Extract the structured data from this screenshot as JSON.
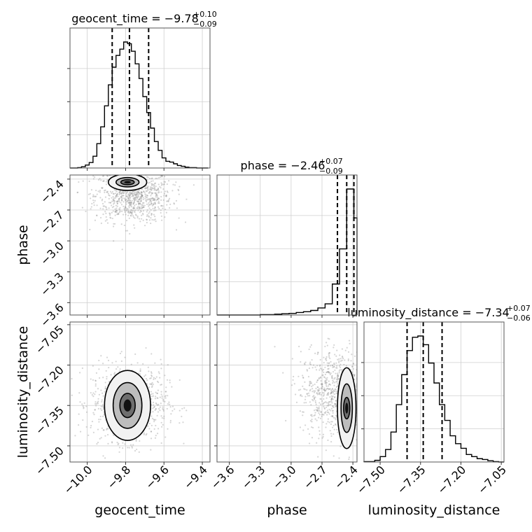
{
  "chart_data": {
    "type": "corner",
    "parameters": [
      {
        "name": "geocent_time",
        "median": -9.78,
        "plus": 0.1,
        "minus": 0.09,
        "range": [
          -10.09,
          -9.36
        ],
        "ticks": [
          -10.0,
          -9.8,
          -9.6,
          -9.4
        ],
        "tick_labels": [
          "−10.0",
          "−9.8",
          "−9.6",
          "−9.4"
        ],
        "quantiles": [
          -9.87,
          -9.78,
          -9.68
        ],
        "title_main": "geocent_time = −9.78",
        "title_sup": "+0.10",
        "title_sub": "−0.09",
        "hist": {
          "edges": [
            -10.09,
            -10.07,
            -10.05,
            -10.03,
            -10.01,
            -9.99,
            -9.97,
            -9.95,
            -9.93,
            -9.91,
            -9.89,
            -9.87,
            -9.85,
            -9.83,
            -9.81,
            -9.79,
            -9.77,
            -9.75,
            -9.73,
            -9.71,
            -9.69,
            -9.67,
            -9.65,
            -9.63,
            -9.61,
            -9.59,
            -9.57,
            -9.55,
            -9.53,
            -9.51,
            -9.49,
            -9.47,
            -9.45,
            -9.43,
            -9.41,
            -9.39,
            -9.37
          ],
          "counts": [
            0,
            0,
            1,
            3,
            7,
            13,
            28,
            58,
            98,
            148,
            198,
            240,
            268,
            283,
            300,
            296,
            278,
            248,
            213,
            170,
            132,
            95,
            63,
            42,
            24,
            16,
            14,
            10,
            6,
            4,
            2,
            1,
            1,
            0,
            0,
            0
          ]
        }
      },
      {
        "name": "phase",
        "median": -2.46,
        "plus": 0.07,
        "minus": 0.09,
        "range": [
          -3.72,
          -2.36
        ],
        "ticks": [
          -3.6,
          -3.3,
          -3.0,
          -2.7,
          -2.4
        ],
        "tick_labels": [
          "−3.6",
          "−3.3",
          "−3.0",
          "−2.7",
          "−2.4"
        ],
        "quantiles": [
          -2.55,
          -2.46,
          -2.39
        ],
        "title_main": "phase = −2.46",
        "title_sup": "+0.07",
        "title_sub": "−0.09",
        "hist": {
          "edges": [
            -3.72,
            -3.65,
            -3.58,
            -3.51,
            -3.44,
            -3.37,
            -3.3,
            -3.23,
            -3.16,
            -3.09,
            -3.02,
            -2.95,
            -2.88,
            -2.81,
            -2.74,
            -2.67,
            -2.6,
            -2.53,
            -2.46,
            -2.39,
            -2.36
          ],
          "counts": [
            0,
            0,
            0,
            0,
            0,
            0,
            1,
            1,
            2,
            3,
            4,
            6,
            8,
            11,
            17,
            27,
            75,
            160,
            305,
            235
          ]
        }
      },
      {
        "name": "luminosity_distance",
        "median": -7.34,
        "plus": 0.07,
        "minus": 0.06,
        "range": [
          -7.56,
          -7.04
        ],
        "ticks": [
          -7.5,
          -7.35,
          -7.2,
          -7.05
        ],
        "tick_labels": [
          "−7.50",
          "−7.35",
          "−7.20",
          "−7.05"
        ],
        "quantiles": [
          -7.4,
          -7.34,
          -7.27
        ],
        "title_main": "luminosity_distance = −7.34",
        "title_sup": "+0.07",
        "title_sub": "−0.06",
        "hist": {
          "edges": [
            -7.56,
            -7.54,
            -7.52,
            -7.5,
            -7.48,
            -7.46,
            -7.44,
            -7.42,
            -7.4,
            -7.38,
            -7.36,
            -7.34,
            -7.32,
            -7.3,
            -7.28,
            -7.26,
            -7.24,
            -7.22,
            -7.2,
            -7.18,
            -7.16,
            -7.14,
            -7.12,
            -7.1,
            -7.08,
            -7.06,
            -7.04
          ],
          "counts": [
            1,
            1,
            4,
            13,
            30,
            72,
            138,
            210,
            268,
            300,
            303,
            282,
            238,
            190,
            138,
            100,
            63,
            44,
            33,
            18,
            13,
            8,
            6,
            3,
            1,
            0
          ]
        }
      }
    ],
    "pairs": [
      {
        "x": 0,
        "y": 1,
        "scatter_mean": [
          -9.76,
          -2.56
        ],
        "scatter_sd": [
          0.1,
          0.13
        ],
        "contour_center": [
          -9.79,
          -2.43
        ],
        "contour_radii": [
          [
            0.035,
            0.025
          ],
          [
            0.06,
            0.045
          ],
          [
            0.1,
            0.08
          ]
        ]
      },
      {
        "x": 0,
        "y": 2,
        "scatter_mean": [
          -9.78,
          -7.34
        ],
        "scatter_sd": [
          0.1,
          0.07
        ],
        "contour_center": [
          -9.79,
          -7.35
        ],
        "contour_radii": [
          [
            0.04,
            0.045
          ],
          [
            0.075,
            0.085
          ],
          [
            0.12,
            0.13
          ]
        ]
      },
      {
        "x": 1,
        "y": 2,
        "scatter_mean": [
          -2.55,
          -7.3
        ],
        "scatter_sd": [
          0.18,
          0.08
        ],
        "contour_center": [
          -2.46,
          -7.36
        ],
        "contour_radii": [
          [
            0.03,
            0.04
          ],
          [
            0.055,
            0.09
          ],
          [
            0.09,
            0.15
          ]
        ]
      }
    ],
    "grid": true
  }
}
